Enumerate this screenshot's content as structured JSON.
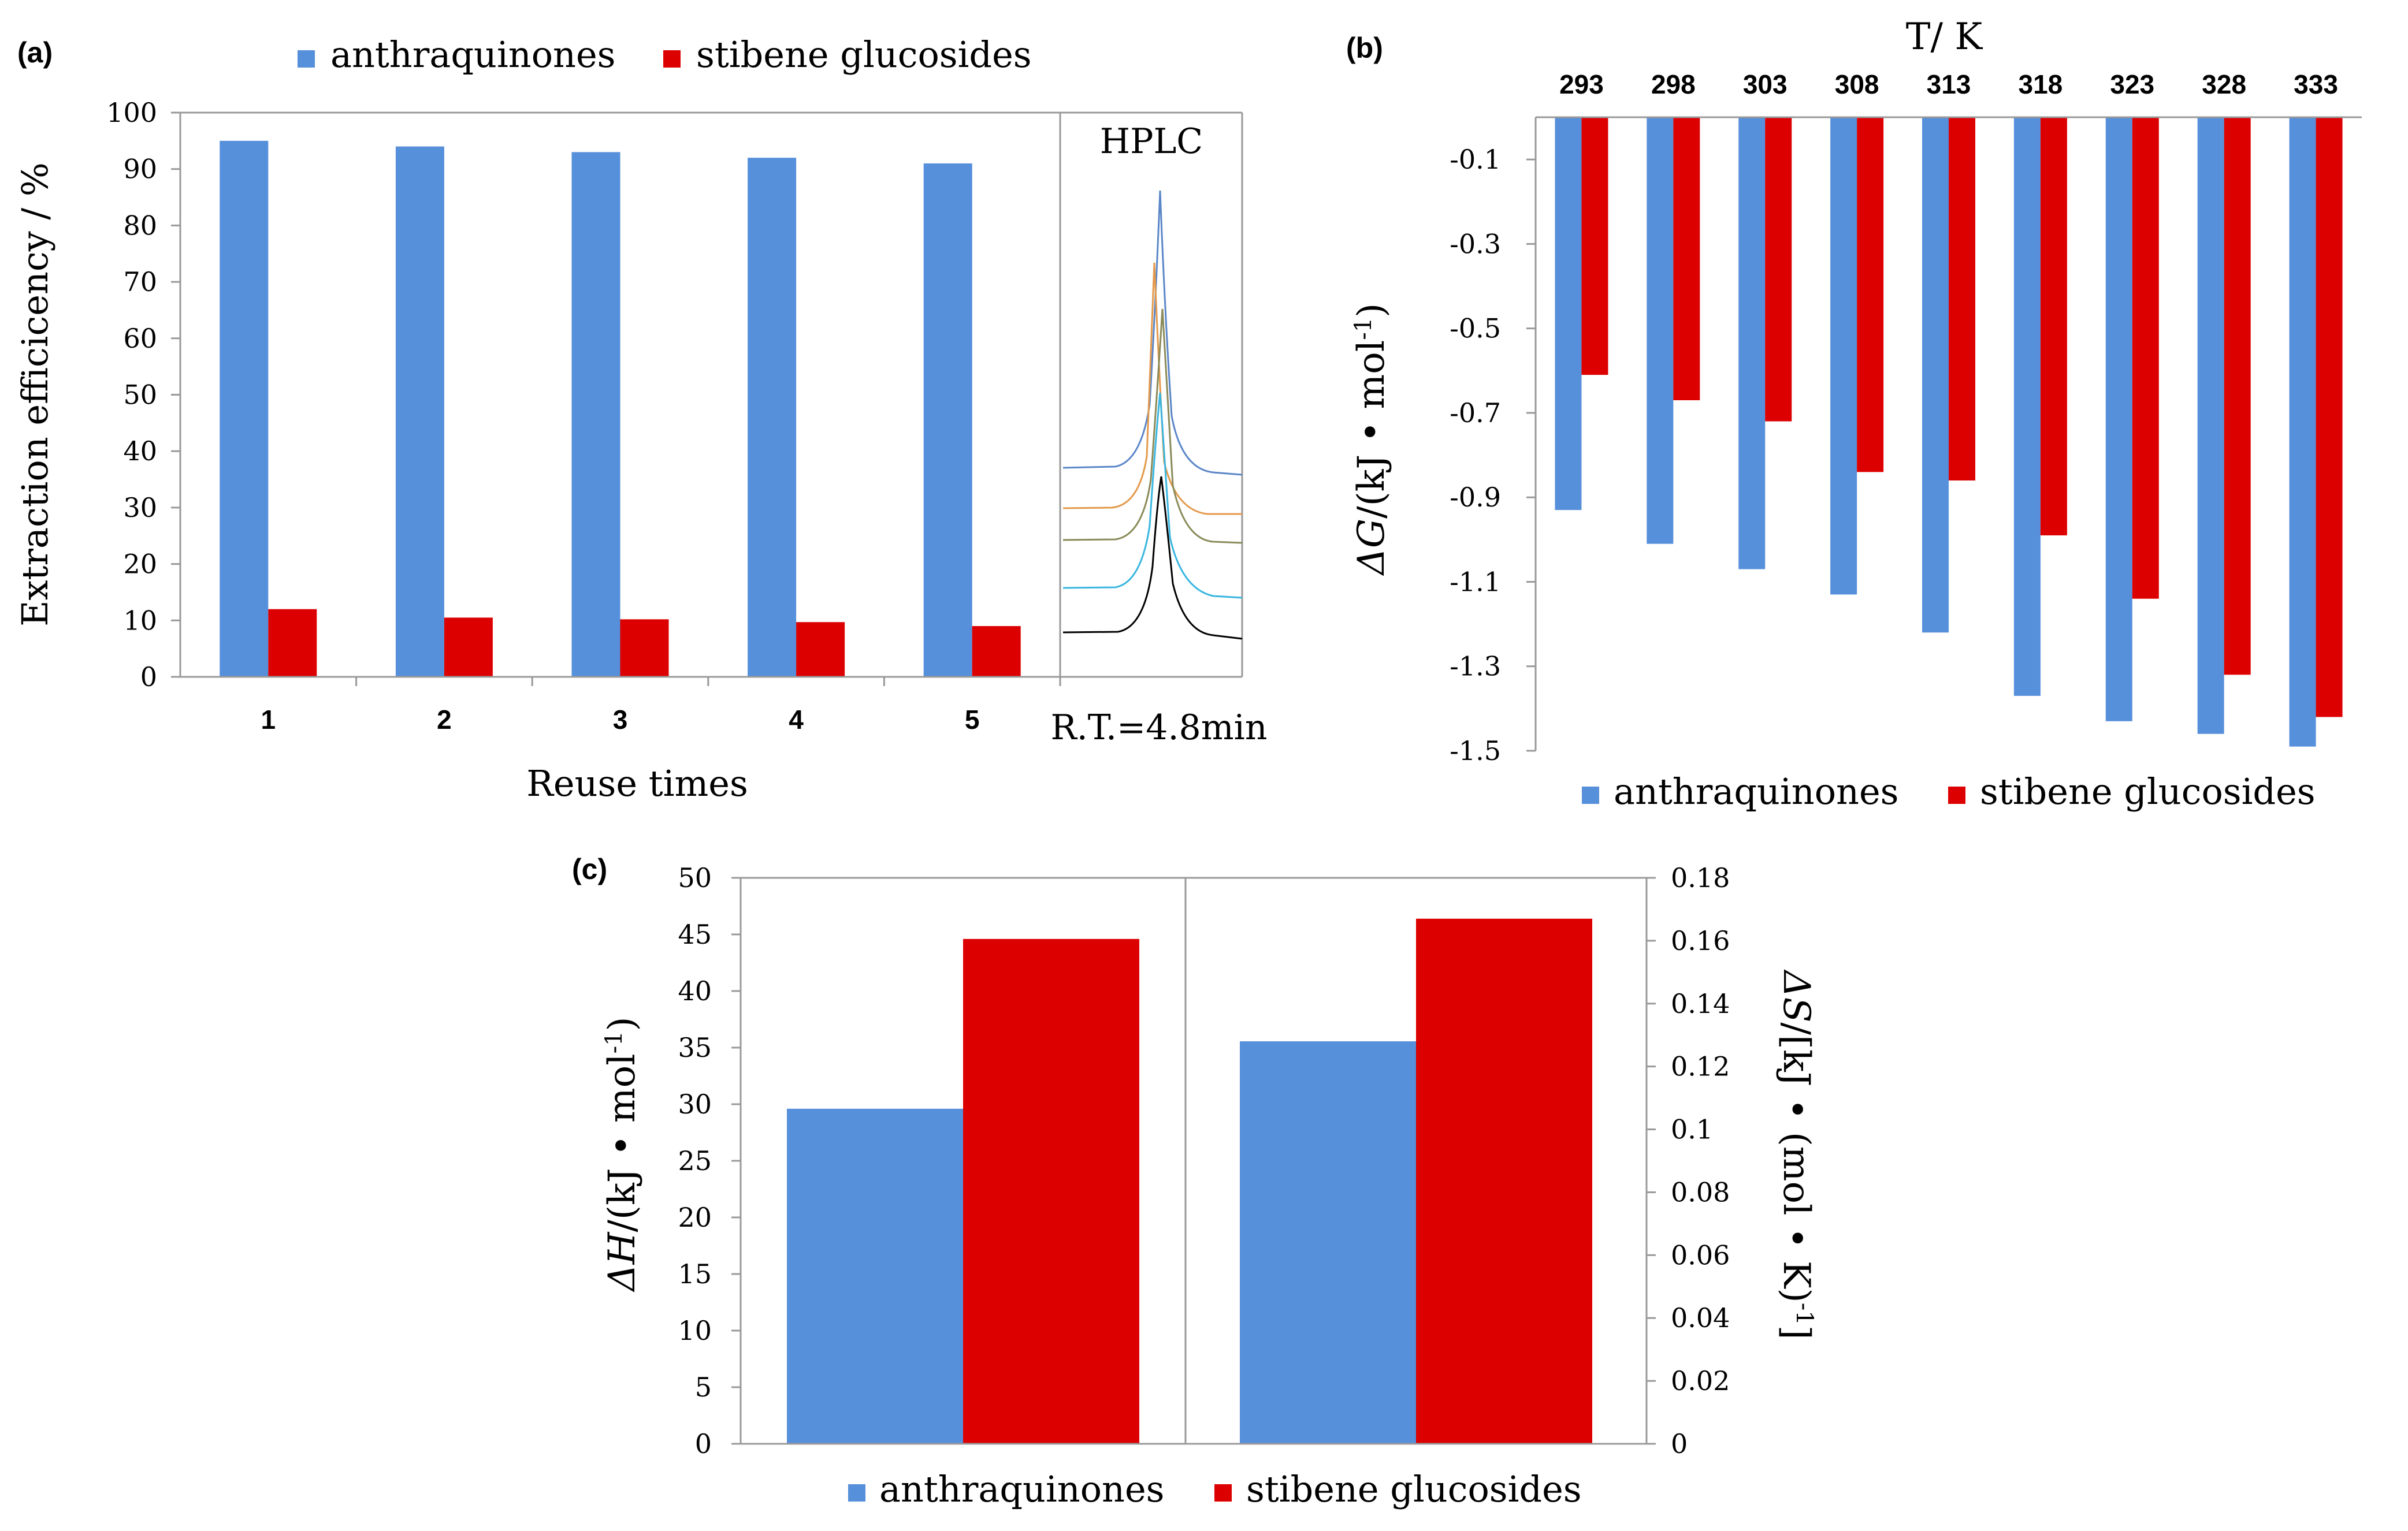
{
  "colors": {
    "blue": "#568fda",
    "red": "#dc0000",
    "axis": "#888888",
    "text": "#000000"
  },
  "chart_data": [
    {
      "type": "bar",
      "panel_label": "(a)",
      "categories": [
        "1",
        "2",
        "3",
        "4",
        "5"
      ],
      "series": [
        {
          "name": "anthraquinones",
          "values": [
            95,
            94,
            93,
            92,
            91
          ]
        },
        {
          "name": "stibene glucosides",
          "values": [
            12,
            10.5,
            10.2,
            9.7,
            9
          ]
        }
      ],
      "ylim": [
        0,
        100
      ],
      "yticks": [
        "0",
        "10",
        "20",
        "30",
        "40",
        "50",
        "60",
        "70",
        "80",
        "90",
        "100"
      ],
      "xlabel": "Reuse times",
      "ylabel": "Extraction efficicency / %",
      "legend_position": "top",
      "inset": {
        "title": "HPLC",
        "caption": "R.T.=4.8min",
        "traces": 5
      }
    },
    {
      "type": "bar",
      "panel_label": "(b)",
      "categories": [
        "293",
        "298",
        "303",
        "308",
        "313",
        "318",
        "323",
        "328",
        "333"
      ],
      "series": [
        {
          "name": "anthraquinones",
          "values": [
            -0.93,
            -1.01,
            -1.07,
            -1.13,
            -1.22,
            -1.37,
            -1.43,
            -1.46,
            -1.49
          ]
        },
        {
          "name": "stibene glucosides",
          "values": [
            -0.61,
            -0.67,
            -0.72,
            -0.84,
            -0.86,
            -0.99,
            -1.14,
            -1.32,
            -1.42
          ]
        }
      ],
      "ylim": [
        -1.5,
        0
      ],
      "yticks": [
        "-0.1",
        "-0.3",
        "-0.5",
        "-0.7",
        "-0.9",
        "-1.1",
        "-1.3",
        "-1.5"
      ],
      "xlabel": "T/ K",
      "ylabel_main": "ΔG",
      "ylabel_unit": "/(kJ • mol",
      "ylabel_sup": "-1",
      "ylabel_end": ")",
      "legend_position": "bottom"
    },
    {
      "type": "bar",
      "panel_label": "(c)",
      "series": [
        {
          "name": "anthraquinones",
          "values": [
            29.6,
            0.128
          ]
        },
        {
          "name": "stibene glucosides",
          "values": [
            44.6,
            0.167
          ]
        }
      ],
      "groups": [
        "ΔH",
        "ΔS"
      ],
      "ylim_left": [
        0,
        50
      ],
      "ylim_right": [
        0,
        0.18
      ],
      "yticks_left": [
        "0",
        "5",
        "10",
        "15",
        "20",
        "25",
        "30",
        "35",
        "40",
        "45",
        "50"
      ],
      "yticks_right": [
        "0",
        "0.02",
        "0.04",
        "0.06",
        "0.08",
        "0.1",
        "0.12",
        "0.14",
        "0.16",
        "0.18"
      ],
      "ylabel_left_main": "ΔH",
      "ylabel_left_unit": "/(kJ • mol",
      "ylabel_left_sup": "-1",
      "ylabel_left_end": ")",
      "ylabel_right_main": "ΔS",
      "ylabel_right_unit": "/[kJ • (mol • K)",
      "ylabel_right_sup": "-1",
      "ylabel_right_end": "]",
      "legend_position": "bottom"
    }
  ]
}
